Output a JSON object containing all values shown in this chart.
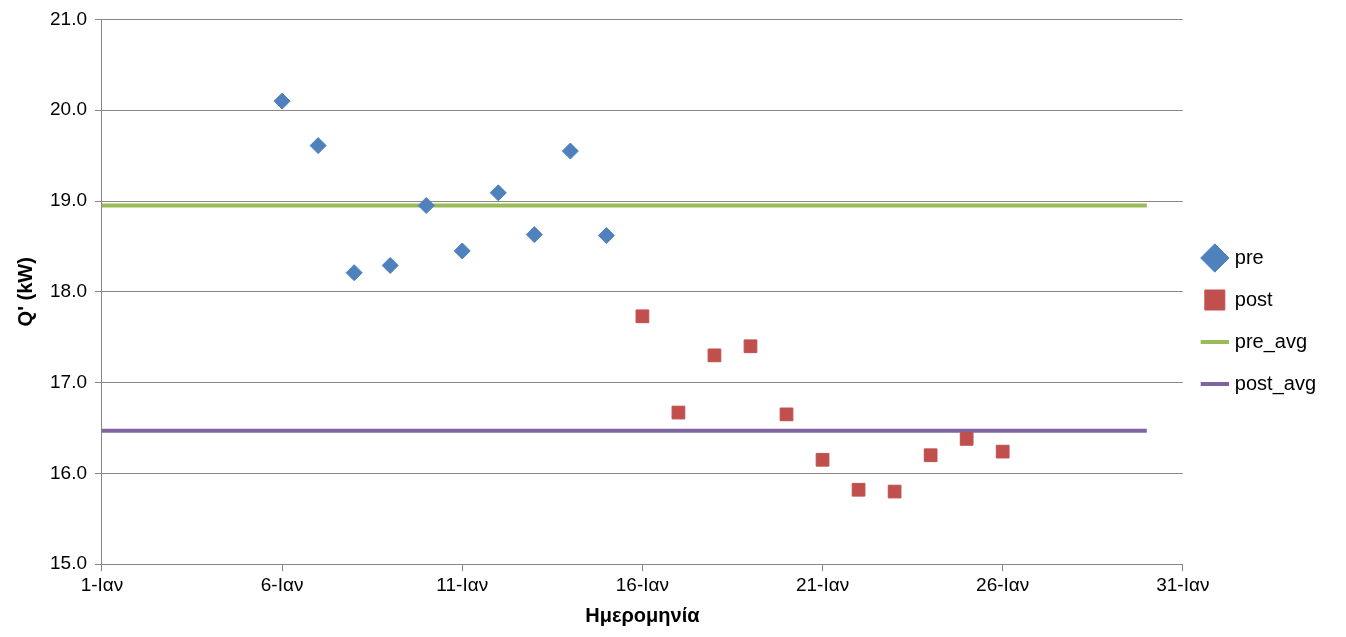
{
  "chart_data": {
    "type": "scatter",
    "xlabel": "Ημερομηνία",
    "ylabel": "Q' (kW)",
    "xlim": [
      "--01-01",
      "--01-31"
    ],
    "xticks": [
      {
        "value": "--01-01",
        "label": "1-Ιαν"
      },
      {
        "value": "--01-06",
        "label": "6-Ιαν"
      },
      {
        "value": "--01-11",
        "label": "11-Ιαν"
      },
      {
        "value": "--01-16",
        "label": "16-Ιαν"
      },
      {
        "value": "--01-21",
        "label": "21-Ιαν"
      },
      {
        "value": "--01-26",
        "label": "26-Ιαν"
      },
      {
        "value": "--01-31",
        "label": "31-Ιαν"
      }
    ],
    "ylim": [
      15,
      21
    ],
    "yticks": [
      {
        "value": 15,
        "label": "15.0"
      },
      {
        "value": 16,
        "label": "16.0"
      },
      {
        "value": 17,
        "label": "17.0"
      },
      {
        "value": 18,
        "label": "18.0"
      },
      {
        "value": 19,
        "label": "19.0"
      },
      {
        "value": 20,
        "label": "20.0"
      },
      {
        "value": 21,
        "label": "21.0"
      }
    ],
    "grid": "y",
    "legend": "right",
    "series": [
      {
        "name": "pre",
        "type": "scatter",
        "marker": "diamond",
        "color": "#4f81bd",
        "x": [
          "--01-06",
          "--01-07",
          "--01-08",
          "--01-09",
          "--01-10",
          "--01-11",
          "--01-12",
          "--01-13",
          "--01-14",
          "--01-15"
        ],
        "values": [
          20.1,
          19.61,
          18.21,
          18.29,
          18.95,
          18.45,
          19.09,
          18.63,
          19.55,
          18.62
        ]
      },
      {
        "name": "post",
        "type": "scatter",
        "marker": "square",
        "color": "#c0504d",
        "x": [
          "--01-16",
          "--01-17",
          "--01-18",
          "--01-19",
          "--01-20",
          "--01-21",
          "--01-22",
          "--01-23",
          "--01-24",
          "--01-25",
          "--01-26"
        ],
        "values": [
          17.73,
          16.67,
          17.3,
          17.4,
          16.65,
          16.15,
          15.82,
          15.8,
          16.2,
          16.38,
          16.24
        ]
      },
      {
        "name": "pre_avg",
        "type": "line",
        "marker": "none",
        "color": "#9bbb59",
        "x": [
          "--01-01",
          "--01-30"
        ],
        "values": [
          18.95,
          18.95
        ]
      },
      {
        "name": "post_avg",
        "type": "line",
        "marker": "none",
        "color": "#8064a2",
        "x": [
          "--01-01",
          "--01-30"
        ],
        "values": [
          16.47,
          16.47
        ]
      }
    ]
  }
}
